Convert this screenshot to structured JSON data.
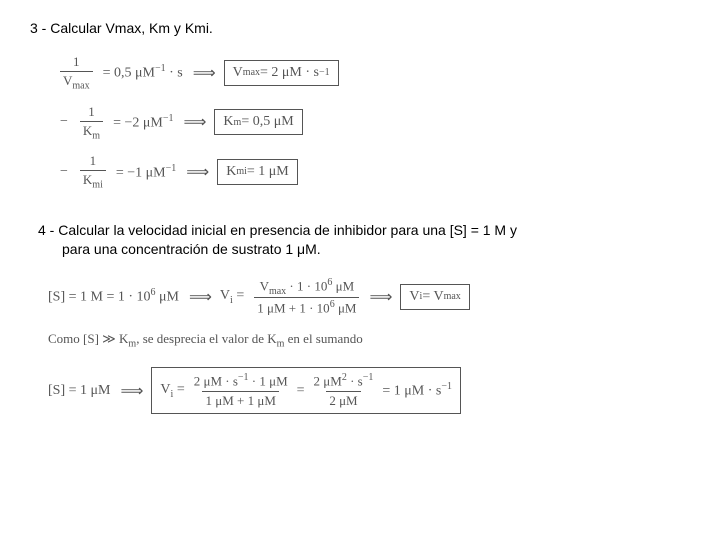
{
  "heading3": "3 - Calcular Vmax, Km y Kmi.",
  "eq1": {
    "lhs_num": "1",
    "lhs_den": "V",
    "lhs_den_sub": "max",
    "rhs1": "= 0,5 μM",
    "rhs1_sup": "−1",
    "rhs1_tail": " · s",
    "box_pre": "V",
    "box_sub": "max",
    "box_rest": " = 2 μM · s",
    "box_sup": "−1"
  },
  "eq2": {
    "neg": "−",
    "lhs_num": "1",
    "lhs_den": "K",
    "lhs_den_sub": "m",
    "rhs1": "= −2 μM",
    "rhs1_sup": "−1",
    "box_pre": "K",
    "box_sub": "m",
    "box_rest": " = 0,5 μM"
  },
  "eq3": {
    "neg": "−",
    "lhs_num": "1",
    "lhs_den": "K",
    "lhs_den_sub": "mi",
    "rhs1": "= −1 μM",
    "rhs1_sup": "−1",
    "box_pre": "K",
    "box_sub": "mi",
    "box_rest": " = 1 μM"
  },
  "heading4a": "4 - Calcular la velocidad inicial en presencia de inhibidor para una [S] = 1 M y",
  "heading4b": "para una concentración de sustrato 1 μM.",
  "eq4a": {
    "s_eq": "[S] = 1 M = 1 · 10",
    "s_sup": "6",
    "s_tail": " μM",
    "vi": "V",
    "vi_sub": "i",
    "eq": " = ",
    "frac_num_a": "V",
    "frac_num_a_sub": "max",
    "frac_num_b": " · 1 · 10",
    "frac_num_b_sup": "6",
    "frac_num_c": " μM",
    "frac_den_a": "1 μM + 1 · 10",
    "frac_den_sup": "6",
    "frac_den_b": " μM",
    "box_l": "V",
    "box_l_sub": "i",
    "box_mid": " = V",
    "box_r_sub": "max"
  },
  "note": {
    "pre": "Como [S] ≫ K",
    "sub1": "m",
    "mid": ", se desprecia el valor de K",
    "sub2": "m",
    "post": " en el sumando"
  },
  "eq4b": {
    "s_eq": "[S] = 1 μM",
    "vi": "V",
    "vi_sub": "i",
    "eq": " = ",
    "num1": "2 μM · s",
    "num1_sup": "−1",
    "num2": " · 1 μM",
    "den": "1 μM + 1 μM",
    "mid_eq": " = ",
    "num3": "2 μM",
    "num3_sup": "2",
    "num4": " · s",
    "num4_sup": "−1",
    "den2": "2 μM",
    "res": " = 1 μM · s",
    "res_sup": "−1"
  },
  "arrow": "⟹"
}
